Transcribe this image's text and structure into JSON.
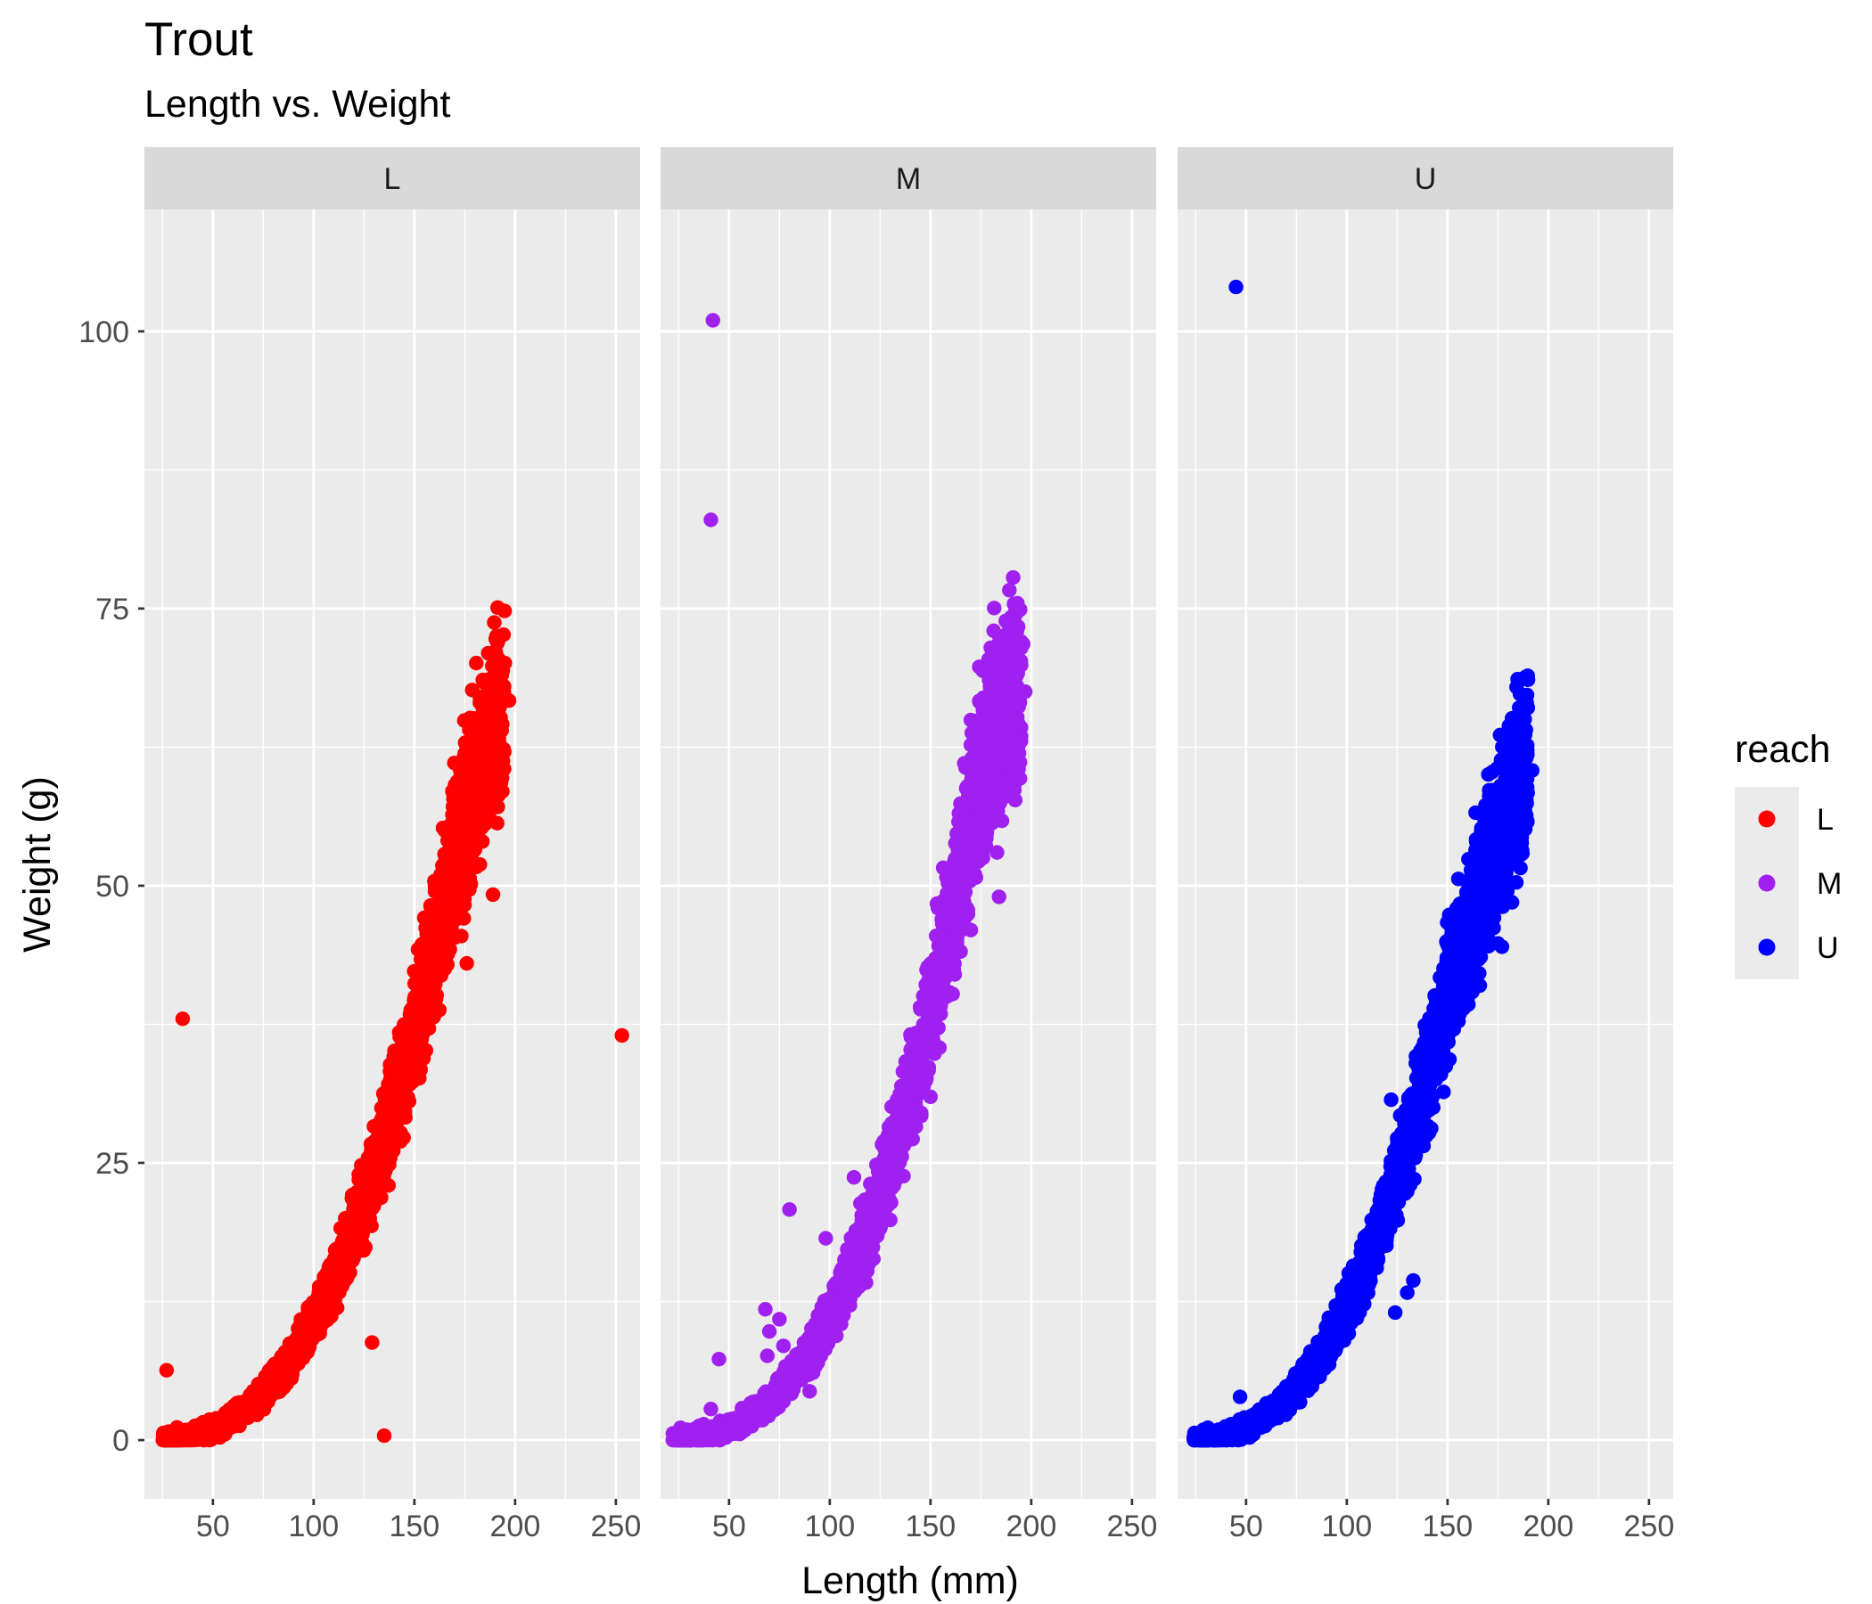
{
  "chart_data": {
    "type": "scatter",
    "title": "Trout",
    "subtitle": "Length vs. Weight",
    "xlabel": "Length (mm)",
    "ylabel": "Weight (g)",
    "facet_labels": [
      "L",
      "M",
      "U"
    ],
    "xlim": [
      16,
      262
    ],
    "ylim": [
      -5.3,
      111
    ],
    "x_ticks": [
      50,
      100,
      150,
      200,
      250
    ],
    "x_tick_labels": [
      "50",
      "100",
      "150",
      "200",
      "250"
    ],
    "y_ticks": [
      0,
      25,
      50,
      75,
      100
    ],
    "y_tick_labels": [
      "0",
      "25",
      "50",
      "75",
      "100"
    ],
    "grid": true,
    "legend": {
      "title": "reach",
      "position": "right",
      "entries": [
        "L",
        "M",
        "U"
      ]
    },
    "colors": {
      "L": "#ff0000",
      "M": "#a020f0",
      "U": "#0000ff"
    },
    "series": [
      {
        "name": "L",
        "curve": [
          [
            25,
            0.1
          ],
          [
            30,
            0.2
          ],
          [
            35,
            0.3
          ],
          [
            40,
            0.5
          ],
          [
            45,
            0.7
          ],
          [
            50,
            1.0
          ],
          [
            55,
            1.4
          ],
          [
            60,
            2.0
          ],
          [
            65,
            2.6
          ],
          [
            70,
            3.3
          ],
          [
            75,
            4.2
          ],
          [
            80,
            5.2
          ],
          [
            85,
            6.3
          ],
          [
            90,
            7.5
          ],
          [
            95,
            9.0
          ],
          [
            100,
            10.6
          ],
          [
            105,
            12.3
          ],
          [
            110,
            14.3
          ],
          [
            115,
            16.4
          ],
          [
            120,
            18.8
          ],
          [
            125,
            21.3
          ],
          [
            130,
            24.1
          ],
          [
            135,
            27.0
          ],
          [
            140,
            30.2
          ],
          [
            145,
            33.6
          ],
          [
            150,
            37.0
          ],
          [
            155,
            40.6
          ],
          [
            160,
            44.5
          ],
          [
            165,
            48.5
          ],
          [
            170,
            53.0
          ],
          [
            175,
            56.0
          ],
          [
            180,
            60.0
          ],
          [
            185,
            62.0
          ],
          [
            190,
            64.0
          ],
          [
            195,
            66.8
          ]
        ],
        "points": [
          [
            27,
            6.3
          ],
          [
            35,
            38
          ],
          [
            129,
            8.8
          ],
          [
            135,
            0.4
          ],
          [
            253,
            36.5
          ],
          [
            180,
            64.7
          ],
          [
            182,
            63
          ],
          [
            185,
            60.3
          ],
          [
            187,
            56.4
          ],
          [
            189,
            49.2
          ],
          [
            193,
            59.3
          ],
          [
            195,
            67
          ],
          [
            197,
            66.7
          ],
          [
            172,
            57
          ],
          [
            176,
            43
          ],
          [
            163,
            51
          ],
          [
            160,
            45
          ],
          [
            165,
            55
          ],
          [
            168,
            48
          ],
          [
            170,
            54
          ],
          [
            174,
            51.5
          ],
          [
            166,
            49.8
          ],
          [
            156,
            41.5
          ],
          [
            150,
            36.8
          ],
          [
            145,
            34.2
          ],
          [
            140,
            31
          ],
          [
            158,
            38.5
          ],
          [
            162,
            42.5
          ]
        ]
      },
      {
        "name": "M",
        "curve": [
          [
            22,
            0.1
          ],
          [
            30,
            0.2
          ],
          [
            35,
            0.3
          ],
          [
            40,
            0.5
          ],
          [
            45,
            0.7
          ],
          [
            50,
            1.0
          ],
          [
            55,
            1.4
          ],
          [
            60,
            2.0
          ],
          [
            65,
            2.6
          ],
          [
            70,
            3.4
          ],
          [
            75,
            4.4
          ],
          [
            80,
            5.5
          ],
          [
            85,
            6.7
          ],
          [
            90,
            8.0
          ],
          [
            95,
            9.5
          ],
          [
            100,
            11.2
          ],
          [
            105,
            13.0
          ],
          [
            110,
            15.0
          ],
          [
            115,
            17.2
          ],
          [
            120,
            19.6
          ],
          [
            125,
            22.2
          ],
          [
            130,
            25.0
          ],
          [
            135,
            28.0
          ],
          [
            140,
            31.3
          ],
          [
            145,
            34.8
          ],
          [
            150,
            38.5
          ],
          [
            155,
            42.5
          ],
          [
            160,
            47.0
          ],
          [
            165,
            51.5
          ],
          [
            170,
            56.0
          ],
          [
            175,
            61.0
          ],
          [
            180,
            63.5
          ],
          [
            185,
            65.0
          ],
          [
            190,
            66.5
          ],
          [
            195,
            67.5
          ]
        ],
        "points": [
          [
            42,
            101
          ],
          [
            41,
            83
          ],
          [
            45,
            7.3
          ],
          [
            41,
            2.8
          ],
          [
            68,
            11.8
          ],
          [
            70,
            9.8
          ],
          [
            69,
            7.6
          ],
          [
            75,
            10.9
          ],
          [
            77,
            8.5
          ],
          [
            80,
            20.8
          ],
          [
            98,
            18.2
          ],
          [
            112,
            23.7
          ],
          [
            118,
            14.2
          ],
          [
            96,
            12
          ],
          [
            90,
            4.4
          ],
          [
            191,
            77.8
          ],
          [
            192,
            74.7
          ],
          [
            195,
            72
          ],
          [
            196,
            71.8
          ],
          [
            197,
            67.5
          ],
          [
            194,
            66.5
          ],
          [
            192,
            66
          ],
          [
            189,
            63.8
          ],
          [
            186,
            64.4
          ],
          [
            182,
            65.5
          ],
          [
            181,
            66.2
          ],
          [
            180,
            61.3
          ],
          [
            177,
            62
          ],
          [
            176,
            59
          ],
          [
            172,
            55.6
          ],
          [
            173,
            53.7
          ],
          [
            176,
            52.5
          ],
          [
            178,
            55
          ],
          [
            183,
            53
          ],
          [
            184,
            49
          ],
          [
            193,
            61.2
          ],
          [
            165,
            50.5
          ],
          [
            168,
            48
          ],
          [
            170,
            46
          ],
          [
            162,
            42
          ],
          [
            158,
            40
          ]
        ]
      },
      {
        "name": "U",
        "curve": [
          [
            24,
            0.1
          ],
          [
            30,
            0.2
          ],
          [
            35,
            0.3
          ],
          [
            40,
            0.5
          ],
          [
            45,
            0.8
          ],
          [
            50,
            1.1
          ],
          [
            55,
            1.6
          ],
          [
            60,
            2.2
          ],
          [
            65,
            2.9
          ],
          [
            70,
            3.7
          ],
          [
            75,
            4.6
          ],
          [
            80,
            5.8
          ],
          [
            85,
            7.0
          ],
          [
            90,
            8.4
          ],
          [
            95,
            10.0
          ],
          [
            100,
            11.8
          ],
          [
            105,
            13.8
          ],
          [
            110,
            16.0
          ],
          [
            115,
            18.4
          ],
          [
            120,
            21.0
          ],
          [
            125,
            23.8
          ],
          [
            130,
            26.8
          ],
          [
            135,
            30.0
          ],
          [
            140,
            33.3
          ],
          [
            145,
            36.8
          ],
          [
            150,
            40.2
          ],
          [
            155,
            43.5
          ],
          [
            160,
            46.5
          ],
          [
            165,
            49.0
          ],
          [
            170,
            51.5
          ],
          [
            175,
            54.0
          ],
          [
            180,
            57.0
          ],
          [
            185,
            59.5
          ],
          [
            190,
            61.5
          ]
        ],
        "points": [
          [
            45,
            104
          ],
          [
            47,
            3.9
          ],
          [
            122,
            30.7
          ],
          [
            130,
            13.3
          ],
          [
            133,
            14.4
          ],
          [
            124,
            11.5
          ],
          [
            182,
            65.1
          ],
          [
            184,
            59.2
          ],
          [
            192,
            60.4
          ],
          [
            176,
            55.4
          ],
          [
            183,
            55
          ],
          [
            184,
            53.6
          ],
          [
            187,
            53.2
          ],
          [
            171,
            48.1
          ],
          [
            174,
            49
          ],
          [
            175,
            49.4
          ],
          [
            178,
            50.7
          ],
          [
            180,
            50.3
          ],
          [
            182,
            48.5
          ],
          [
            168,
            46.7
          ],
          [
            170,
            45.3
          ],
          [
            175,
            44.8
          ],
          [
            177,
            44.5
          ],
          [
            160,
            43
          ],
          [
            163,
            42.5
          ],
          [
            166,
            41
          ],
          [
            160,
            39.9
          ],
          [
            150,
            36.3
          ],
          [
            148,
            31.4
          ]
        ]
      }
    ]
  }
}
